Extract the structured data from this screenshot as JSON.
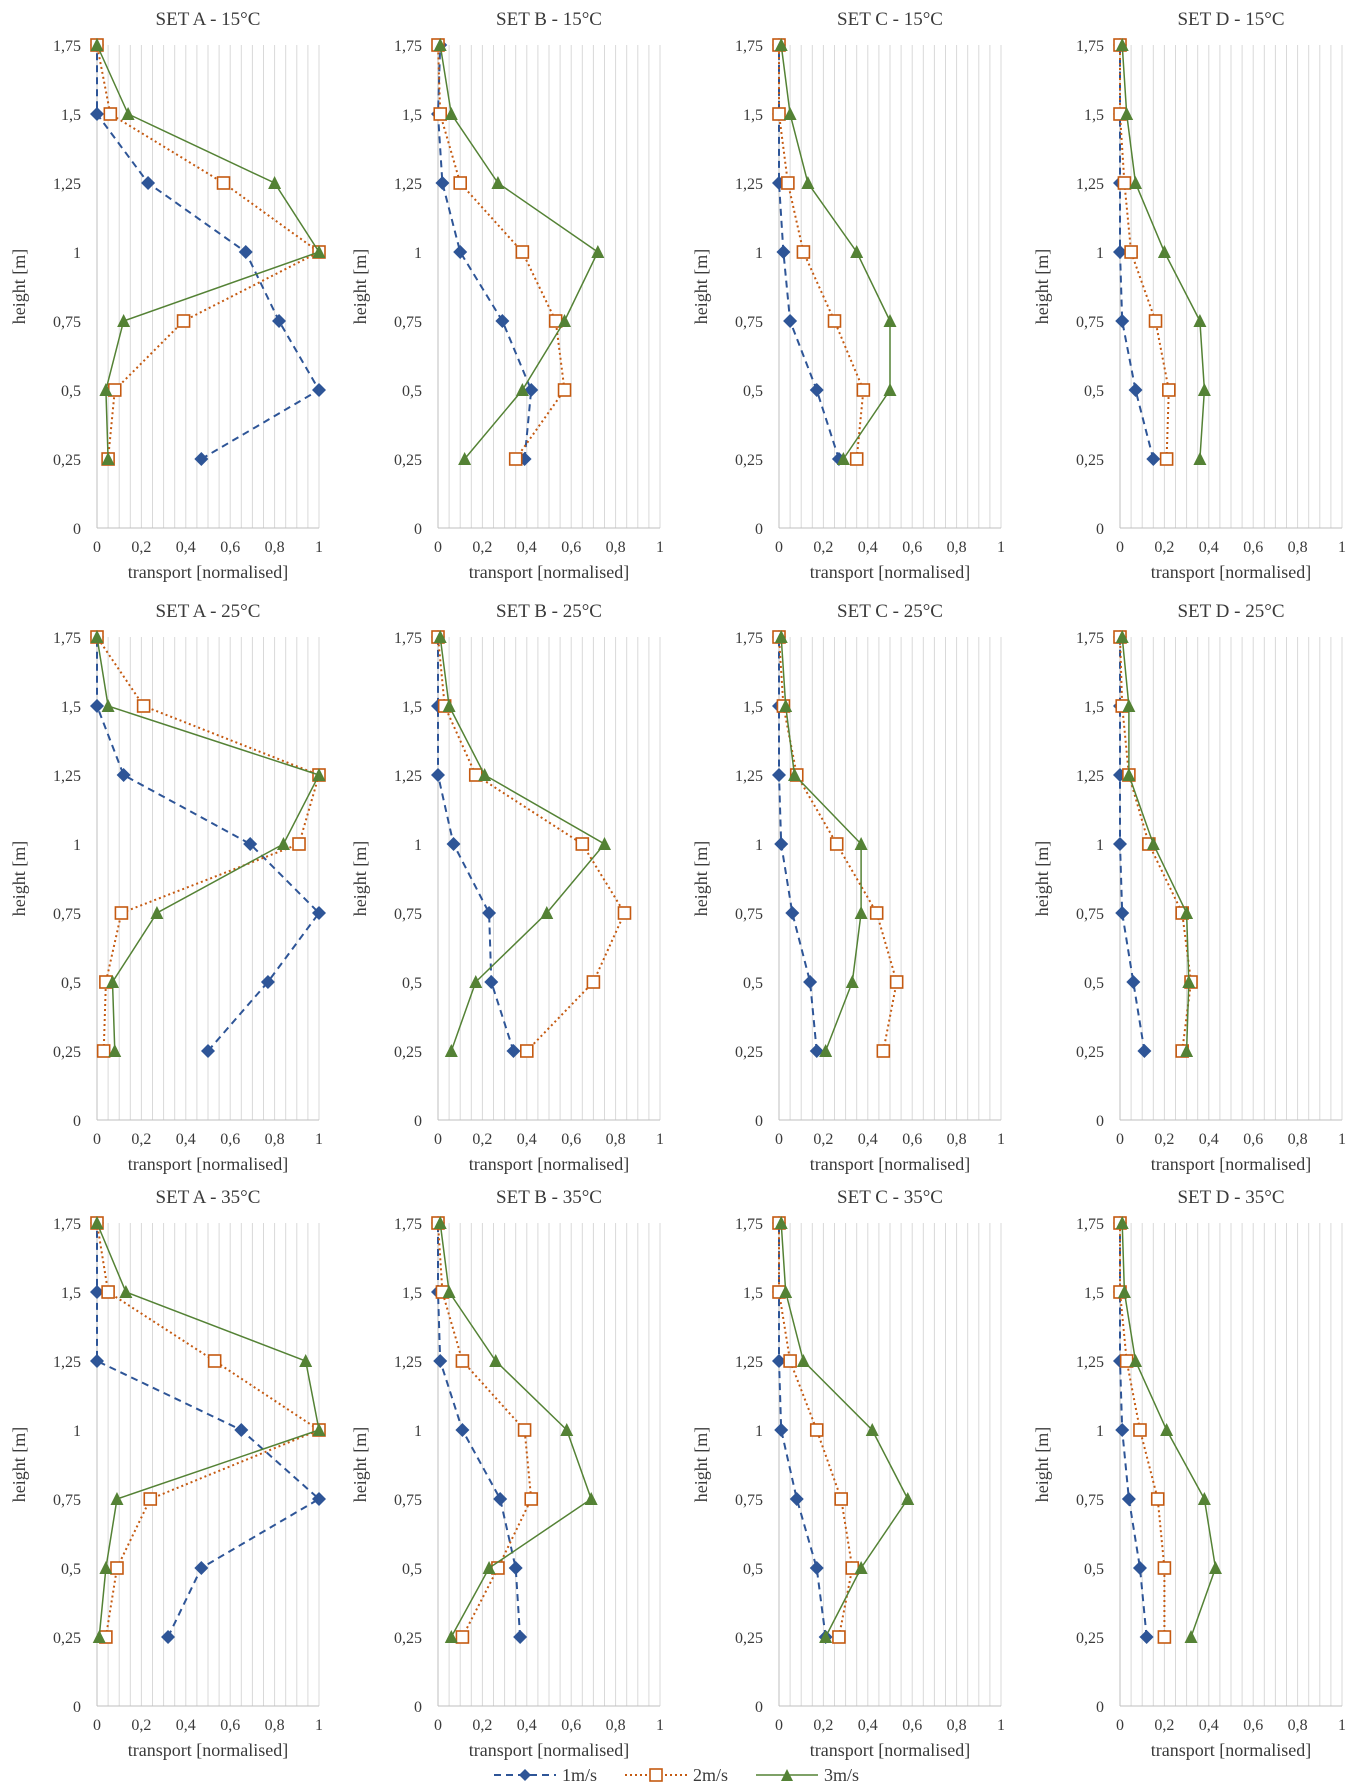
{
  "chart_data": {
    "type": "line",
    "xlabel": "transport [normalised]",
    "ylabel": "height [m]",
    "xlim": [
      0,
      1
    ],
    "ylim": [
      0,
      1.75
    ],
    "x_ticks": [
      "0",
      "0,2",
      "0,4",
      "0,6",
      "0,8",
      "1"
    ],
    "y_ticks": [
      "0",
      "0,25",
      "0,5",
      "0,75",
      "1",
      "1,25",
      "1,5",
      "1,75"
    ],
    "heights": [
      0.25,
      0.5,
      0.75,
      1,
      1.25,
      1.5,
      1.75
    ],
    "grid": "vertical",
    "legend_position": "bottom",
    "legend": [
      "1m/s",
      "2m/s",
      "3m/s"
    ],
    "series_styles": [
      {
        "name": "1m/s",
        "color": "#2E5597",
        "dash": "7,5",
        "marker": "diamond"
      },
      {
        "name": "2m/s",
        "color": "#C55A11",
        "dash": "2,3",
        "marker": "square-open"
      },
      {
        "name": "3m/s",
        "color": "#548235",
        "dash": "",
        "marker": "triangle"
      }
    ],
    "panels": [
      {
        "title": "SET A - 15°C",
        "series": [
          {
            "name": "1m/s",
            "values": [
              0.47,
              1.0,
              0.82,
              0.67,
              0.23,
              0.0,
              0.0
            ]
          },
          {
            "name": "2m/s",
            "values": [
              0.05,
              0.08,
              0.39,
              1.0,
              0.57,
              0.06,
              0.0
            ]
          },
          {
            "name": "3m/s",
            "values": [
              0.05,
              0.04,
              0.12,
              1.0,
              0.8,
              0.14,
              0.0
            ]
          }
        ]
      },
      {
        "title": "SET B - 15°C",
        "series": [
          {
            "name": "1m/s",
            "values": [
              0.39,
              0.42,
              0.29,
              0.1,
              0.02,
              0.0,
              0.01
            ]
          },
          {
            "name": "2m/s",
            "values": [
              0.35,
              0.57,
              0.53,
              0.38,
              0.1,
              0.01,
              0.0
            ]
          },
          {
            "name": "3m/s",
            "values": [
              0.12,
              0.38,
              0.57,
              0.72,
              0.27,
              0.06,
              0.01
            ]
          }
        ]
      },
      {
        "title": "SET C - 15°C",
        "series": [
          {
            "name": "1m/s",
            "values": [
              0.27,
              0.17,
              0.05,
              0.02,
              0.0,
              0.0,
              0.0
            ]
          },
          {
            "name": "2m/s",
            "values": [
              0.35,
              0.38,
              0.25,
              0.11,
              0.04,
              0.0,
              0.0
            ]
          },
          {
            "name": "3m/s",
            "values": [
              0.29,
              0.5,
              0.5,
              0.35,
              0.13,
              0.05,
              0.01
            ]
          }
        ]
      },
      {
        "title": "SET D - 15°C",
        "series": [
          {
            "name": "1m/s",
            "values": [
              0.15,
              0.07,
              0.01,
              0.0,
              0.0,
              0.0,
              0.0
            ]
          },
          {
            "name": "2m/s",
            "values": [
              0.21,
              0.22,
              0.16,
              0.05,
              0.02,
              0.0,
              0.0
            ]
          },
          {
            "name": "3m/s",
            "values": [
              0.36,
              0.38,
              0.36,
              0.2,
              0.07,
              0.03,
              0.01
            ]
          }
        ]
      },
      {
        "title": "SET A - 25°C",
        "series": [
          {
            "name": "1m/s",
            "values": [
              0.5,
              0.77,
              1.0,
              0.69,
              0.12,
              0.0,
              0.0
            ]
          },
          {
            "name": "2m/s",
            "values": [
              0.03,
              0.04,
              0.11,
              0.91,
              1.0,
              0.21,
              0.0
            ]
          },
          {
            "name": "3m/s",
            "values": [
              0.08,
              0.07,
              0.27,
              0.84,
              1.0,
              0.05,
              0.0
            ]
          }
        ]
      },
      {
        "title": "SET B - 25°C",
        "series": [
          {
            "name": "1m/s",
            "values": [
              0.34,
              0.24,
              0.23,
              0.07,
              0.0,
              0.0,
              0.0
            ]
          },
          {
            "name": "2m/s",
            "values": [
              0.4,
              0.7,
              0.84,
              0.65,
              0.17,
              0.03,
              0.0
            ]
          },
          {
            "name": "3m/s",
            "values": [
              0.06,
              0.17,
              0.49,
              0.75,
              0.21,
              0.05,
              0.01
            ]
          }
        ]
      },
      {
        "title": "SET C - 25°C",
        "series": [
          {
            "name": "1m/s",
            "values": [
              0.17,
              0.14,
              0.06,
              0.01,
              0.0,
              0.0,
              0.0
            ]
          },
          {
            "name": "2m/s",
            "values": [
              0.47,
              0.53,
              0.44,
              0.26,
              0.08,
              0.02,
              0.0
            ]
          },
          {
            "name": "3m/s",
            "values": [
              0.21,
              0.33,
              0.37,
              0.37,
              0.07,
              0.03,
              0.01
            ]
          }
        ]
      },
      {
        "title": "SET D - 25°C",
        "series": [
          {
            "name": "1m/s",
            "values": [
              0.11,
              0.06,
              0.01,
              0.0,
              0.0,
              0.0,
              0.0
            ]
          },
          {
            "name": "2m/s",
            "values": [
              0.28,
              0.32,
              0.28,
              0.13,
              0.04,
              0.01,
              0.0
            ]
          },
          {
            "name": "3m/s",
            "values": [
              0.3,
              0.31,
              0.3,
              0.15,
              0.04,
              0.04,
              0.01
            ]
          }
        ]
      },
      {
        "title": "SET A - 35°C",
        "series": [
          {
            "name": "1m/s",
            "values": [
              0.32,
              0.47,
              1.0,
              0.65,
              0.0,
              0.0,
              0.0
            ]
          },
          {
            "name": "2m/s",
            "values": [
              0.04,
              0.09,
              0.24,
              1.0,
              0.53,
              0.05,
              0.0
            ]
          },
          {
            "name": "3m/s",
            "values": [
              0.01,
              0.04,
              0.09,
              1.0,
              0.94,
              0.13,
              0.0
            ]
          }
        ]
      },
      {
        "title": "SET B - 35°C",
        "series": [
          {
            "name": "1m/s",
            "values": [
              0.37,
              0.35,
              0.28,
              0.11,
              0.01,
              0.0,
              0.0
            ]
          },
          {
            "name": "2m/s",
            "values": [
              0.11,
              0.27,
              0.42,
              0.39,
              0.11,
              0.02,
              0.0
            ]
          },
          {
            "name": "3m/s",
            "values": [
              0.06,
              0.23,
              0.69,
              0.58,
              0.26,
              0.05,
              0.01
            ]
          }
        ]
      },
      {
        "title": "SET C - 35°C",
        "series": [
          {
            "name": "1m/s",
            "values": [
              0.21,
              0.17,
              0.08,
              0.01,
              0.0,
              0.0,
              0.0
            ]
          },
          {
            "name": "2m/s",
            "values": [
              0.27,
              0.33,
              0.28,
              0.17,
              0.05,
              0.0,
              0.0
            ]
          },
          {
            "name": "3m/s",
            "values": [
              0.21,
              0.37,
              0.58,
              0.42,
              0.11,
              0.03,
              0.01
            ]
          }
        ]
      },
      {
        "title": "SET D - 35°C",
        "series": [
          {
            "name": "1m/s",
            "values": [
              0.12,
              0.09,
              0.04,
              0.01,
              0.0,
              0.0,
              0.0
            ]
          },
          {
            "name": "2m/s",
            "values": [
              0.2,
              0.2,
              0.17,
              0.09,
              0.03,
              0.0,
              0.0
            ]
          },
          {
            "name": "3m/s",
            "values": [
              0.32,
              0.43,
              0.38,
              0.21,
              0.07,
              0.02,
              0.01
            ]
          }
        ]
      }
    ]
  }
}
